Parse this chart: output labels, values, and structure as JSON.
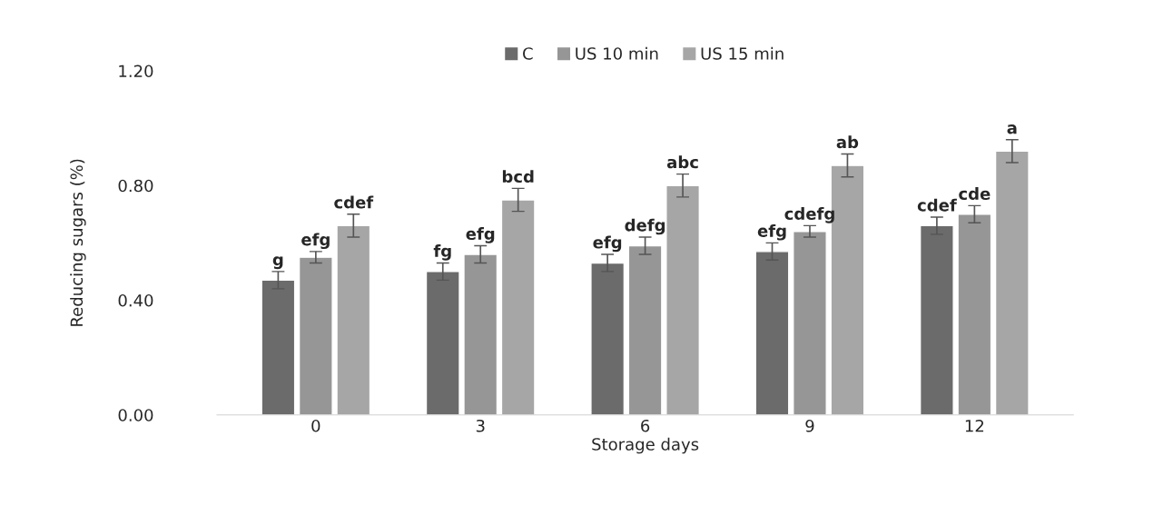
{
  "chart_data": {
    "type": "bar",
    "xlabel": "Storage days",
    "ylabel": "Reducing sugars (%)",
    "categories": [
      "0",
      "3",
      "6",
      "9",
      "12"
    ],
    "series": [
      {
        "name": "C",
        "color": "#6b6b6b",
        "values": [
          0.47,
          0.5,
          0.53,
          0.57,
          0.66
        ],
        "errors": [
          0.03,
          0.03,
          0.03,
          0.03,
          0.03
        ],
        "value_labels": [
          "g",
          "fg",
          "efg",
          "efg",
          "cdef"
        ]
      },
      {
        "name": "US 10 min",
        "color": "#969696",
        "values": [
          0.55,
          0.56,
          0.59,
          0.64,
          0.7
        ],
        "errors": [
          0.02,
          0.03,
          0.03,
          0.02,
          0.03
        ],
        "value_labels": [
          "efg",
          "efg",
          "defg",
          "cdefg",
          "cde"
        ]
      },
      {
        "name": "US 15 min",
        "color": "#a6a6a6",
        "values": [
          0.66,
          0.75,
          0.8,
          0.87,
          0.92
        ],
        "errors": [
          0.04,
          0.04,
          0.04,
          0.04,
          0.04
        ],
        "value_labels": [
          "cdef",
          "bcd",
          "abc",
          "ab",
          "a"
        ]
      }
    ],
    "ylim": [
      0,
      1.2
    ],
    "yticks": [
      {
        "value": 0,
        "label": "0.00"
      },
      {
        "value": 0.4,
        "label": "0.40"
      },
      {
        "value": 0.8,
        "label": "0.80"
      },
      {
        "value": 1.2,
        "label": "1.20"
      }
    ],
    "grid": false,
    "legend": "top"
  }
}
